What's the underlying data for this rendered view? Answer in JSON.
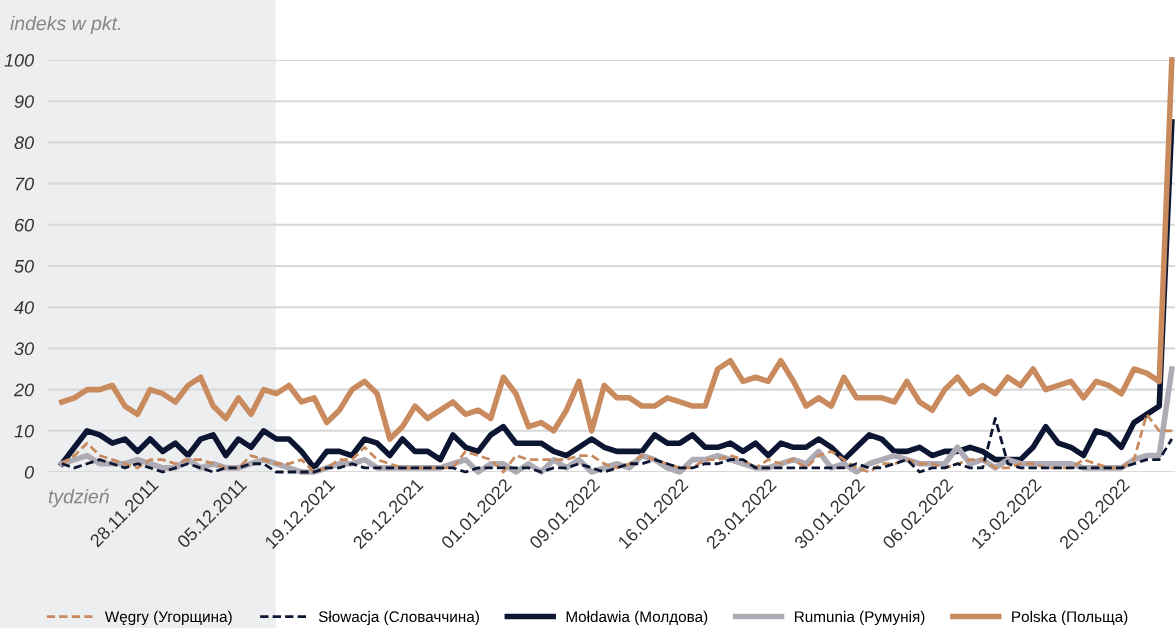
{
  "chart_data": {
    "type": "line",
    "ylabel": "indeks w pkt.",
    "xlabel": "tydzień",
    "categories": [
      null,
      null,
      null,
      null,
      null,
      null,
      null,
      "28.11.2011",
      null,
      null,
      null,
      null,
      null,
      null,
      "05.12.2011",
      null,
      null,
      null,
      null,
      null,
      null,
      "19.12.2021",
      null,
      null,
      null,
      null,
      null,
      null,
      "26.12.2021",
      null,
      null,
      null,
      null,
      null,
      null,
      "01.01.2022",
      null,
      null,
      null,
      null,
      null,
      null,
      "09.01.2022",
      null,
      null,
      null,
      null,
      null,
      null,
      "16.01.2022",
      null,
      null,
      null,
      null,
      null,
      null,
      "23.01.2022",
      null,
      null,
      null,
      null,
      null,
      null,
      "30.01.2022",
      null,
      null,
      null,
      null,
      null,
      null,
      "06.02.2022",
      null,
      null,
      null,
      null,
      null,
      null,
      "13.02.2022",
      null,
      null,
      null,
      null,
      null,
      null,
      "20.02.2022",
      null,
      null,
      null,
      null
    ],
    "series": [
      {
        "name": "Węgry (Угорщина)",
        "color": "#c98a5e",
        "line_style": "dashed",
        "values": [
          2,
          4,
          7,
          4,
          3,
          2,
          1,
          3,
          3,
          2,
          3,
          3,
          2,
          1,
          1,
          4,
          3,
          2,
          2,
          3,
          0,
          1,
          3,
          3,
          6,
          3,
          2,
          1,
          1,
          1,
          1,
          1,
          5,
          4,
          3,
          0,
          4,
          3,
          3,
          3,
          3,
          4,
          4,
          2,
          1,
          2,
          4,
          3,
          2,
          1,
          1,
          3,
          3,
          4,
          3,
          1,
          3,
          2,
          3,
          1,
          4,
          5,
          3,
          1,
          0,
          2,
          2,
          3,
          2,
          2,
          1,
          2,
          3,
          3,
          1,
          1,
          2,
          2,
          1,
          1,
          1,
          3,
          2,
          1,
          1,
          3,
          14,
          10,
          10
        ]
      },
      {
        "name": "Słowacja (Словаччина)",
        "color": "#0c1633",
        "line_style": "dashed",
        "values": [
          2,
          1,
          2,
          3,
          2,
          1,
          2,
          1,
          0,
          1,
          2,
          1,
          0,
          1,
          1,
          2,
          2,
          0,
          0,
          0,
          0,
          1,
          1,
          2,
          1,
          1,
          1,
          1,
          1,
          1,
          1,
          1,
          0,
          1,
          1,
          1,
          1,
          1,
          0,
          1,
          1,
          2,
          1,
          0,
          1,
          2,
          2,
          3,
          2,
          1,
          1,
          2,
          2,
          3,
          3,
          1,
          1,
          1,
          1,
          1,
          1,
          1,
          1,
          2,
          1,
          1,
          2,
          3,
          0,
          1,
          1,
          2,
          1,
          1,
          13,
          2,
          1,
          1,
          1,
          1,
          1,
          1,
          1,
          1,
          1,
          2,
          3,
          3,
          8
        ]
      },
      {
        "name": "Mołdawia (Молдова)",
        "color": "#0c1633",
        "line_style": "solid",
        "values": [
          2,
          6,
          10,
          9,
          7,
          8,
          5,
          8,
          5,
          7,
          4,
          8,
          9,
          4,
          8,
          6,
          10,
          8,
          8,
          5,
          1,
          5,
          5,
          4,
          8,
          7,
          4,
          8,
          5,
          5,
          3,
          9,
          6,
          5,
          9,
          11,
          7,
          7,
          7,
          5,
          4,
          6,
          8,
          6,
          5,
          5,
          5,
          9,
          7,
          7,
          9,
          6,
          6,
          7,
          5,
          7,
          4,
          7,
          6,
          6,
          8,
          6,
          3,
          6,
          9,
          8,
          5,
          5,
          6,
          4,
          5,
          5,
          6,
          5,
          3,
          3,
          3,
          6,
          11,
          7,
          6,
          4,
          10,
          9,
          6,
          12,
          14,
          16,
          85
        ]
      },
      {
        "name": "Rumunia (Румунія)",
        "color": "#aeabb5",
        "line_style": "solid",
        "values": [
          2,
          3,
          4,
          2,
          2,
          2,
          3,
          2,
          1,
          1,
          3,
          1,
          2,
          1,
          1,
          2,
          3,
          2,
          1,
          0,
          0,
          1,
          2,
          2,
          3,
          1,
          1,
          1,
          1,
          1,
          1,
          2,
          3,
          0,
          2,
          2,
          0,
          2,
          0,
          3,
          1,
          3,
          0,
          1,
          2,
          1,
          4,
          3,
          1,
          0,
          3,
          3,
          4,
          3,
          2,
          1,
          1,
          2,
          3,
          2,
          5,
          1,
          2,
          0,
          2,
          3,
          4,
          3,
          2,
          2,
          2,
          6,
          2,
          3,
          1,
          3,
          2,
          2,
          2,
          2,
          2,
          1,
          1,
          1,
          1,
          3,
          4,
          4,
          25
        ]
      },
      {
        "name": "Polska (Польща)",
        "color": "#c98a5e",
        "line_style": "solid",
        "values": [
          17,
          18,
          20,
          20,
          21,
          16,
          14,
          20,
          19,
          17,
          21,
          23,
          16,
          13,
          18,
          14,
          20,
          19,
          21,
          17,
          18,
          12,
          15,
          20,
          22,
          19,
          8,
          11,
          16,
          13,
          15,
          17,
          14,
          15,
          13,
          23,
          19,
          11,
          12,
          10,
          15,
          22,
          10,
          21,
          18,
          18,
          16,
          16,
          18,
          17,
          16,
          16,
          25,
          27,
          22,
          23,
          22,
          27,
          22,
          16,
          18,
          16,
          23,
          18,
          18,
          18,
          17,
          22,
          17,
          15,
          20,
          23,
          19,
          21,
          19,
          23,
          21,
          25,
          20,
          21,
          22,
          18,
          22,
          21,
          19,
          25,
          24,
          22,
          100
        ]
      }
    ],
    "ylim": [
      0,
      100
    ],
    "yticks": [
      0,
      10,
      20,
      30,
      40,
      50,
      60,
      70,
      80,
      90,
      100
    ],
    "grid": "y",
    "legend": "bottom",
    "marker": "none"
  }
}
